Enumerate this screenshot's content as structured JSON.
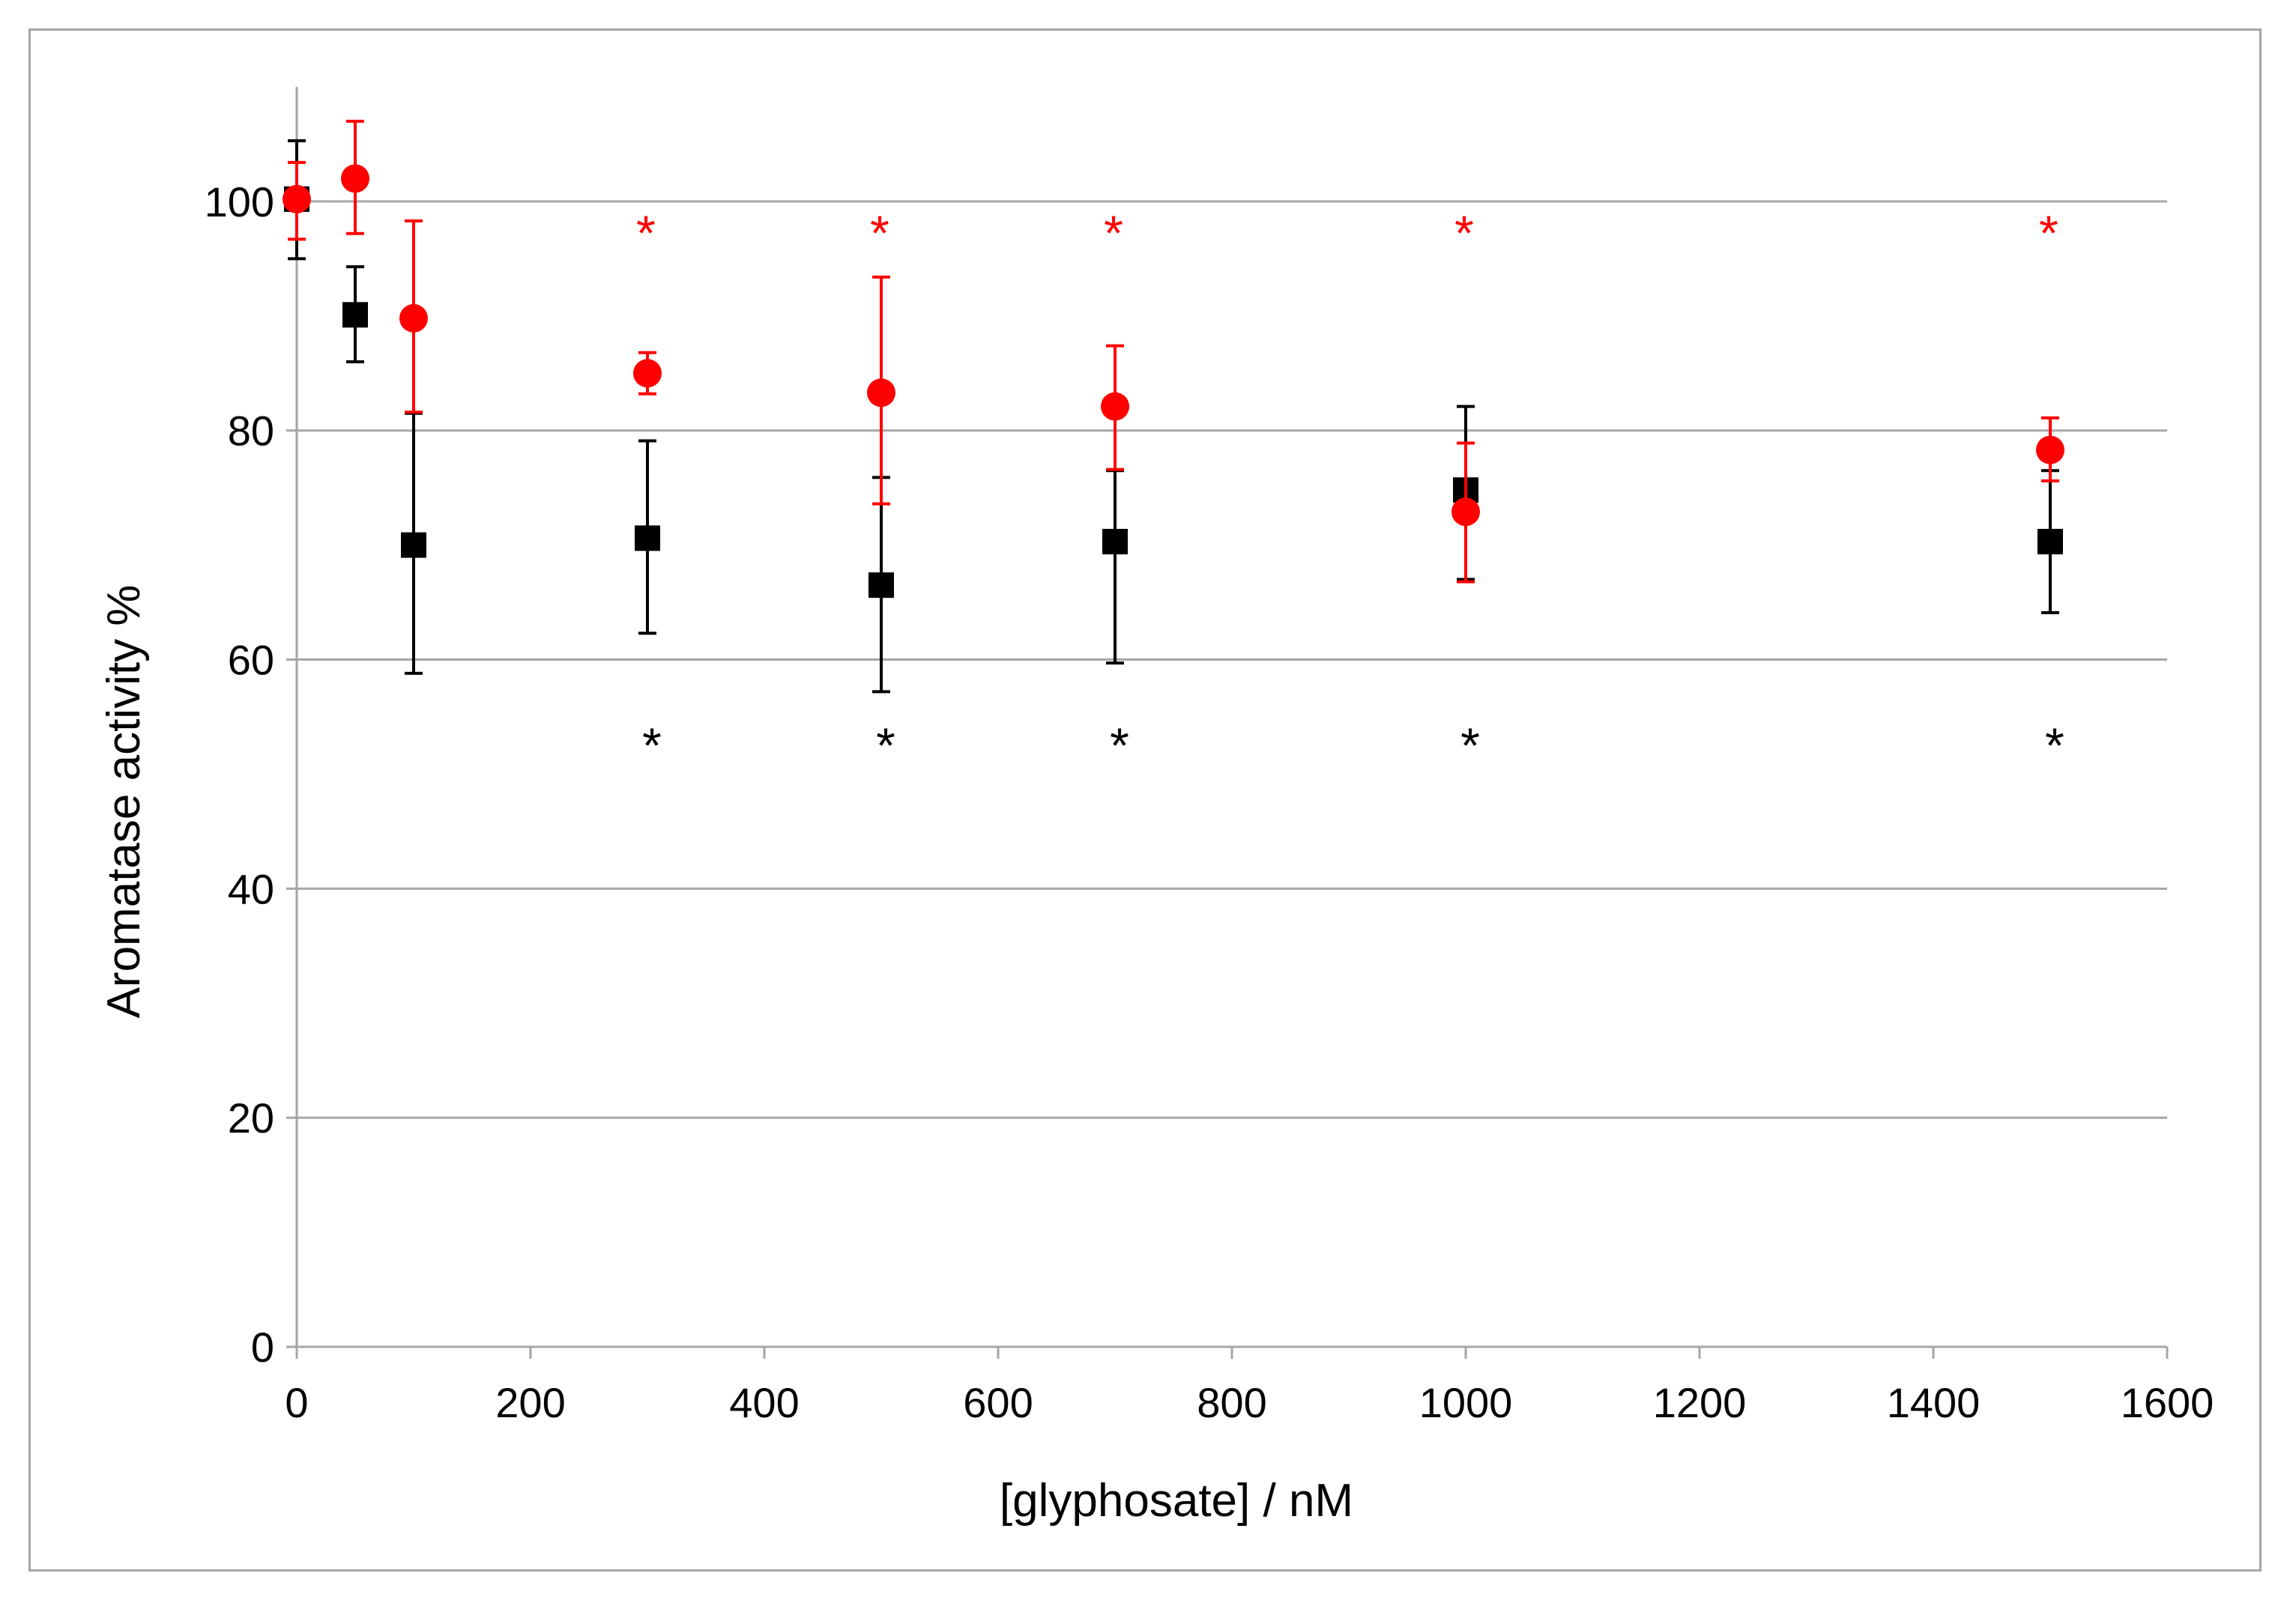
{
  "chart_data": {
    "type": "scatter",
    "title": "",
    "xlabel": "[glyphosate] / nM",
    "ylabel": "Aromatase activity %",
    "xlim": [
      0,
      1600
    ],
    "ylim": [
      0,
      110
    ],
    "xticks": [
      0,
      200,
      400,
      600,
      800,
      1000,
      1200,
      1400,
      1600
    ],
    "yticks": [
      0,
      20,
      40,
      60,
      80,
      100
    ],
    "xtick_labels": [
      "0",
      "200",
      "400",
      "600",
      "800",
      "1000",
      "1200",
      "1400",
      "1600"
    ],
    "ytick_labels": [
      "0",
      "20",
      "40",
      "60",
      "80",
      "100"
    ],
    "grid": "horizontal",
    "legend": "none",
    "series": [
      {
        "marker": "square",
        "color": "#000000",
        "points": [
          {
            "x": 0,
            "y": 100.2,
            "err_low": 95.0,
            "err_high": 105.3
          },
          {
            "x": 50,
            "y": 90.1,
            "err_low": 86.0,
            "err_high": 94.3
          },
          {
            "x": 100,
            "y": 70.0,
            "err_low": 58.8,
            "err_high": 81.5
          },
          {
            "x": 300,
            "y": 70.6,
            "err_low": 62.3,
            "err_high": 79.1
          },
          {
            "x": 500,
            "y": 66.5,
            "err_low": 57.2,
            "err_high": 75.9
          },
          {
            "x": 700,
            "y": 70.3,
            "err_low": 59.7,
            "err_high": 76.5
          },
          {
            "x": 1000,
            "y": 74.8,
            "err_low": 67.0,
            "err_high": 82.1
          },
          {
            "x": 1500,
            "y": 70.3,
            "err_low": 64.1,
            "err_high": 76.5
          }
        ],
        "significance": [
          {
            "x": 300,
            "label": "*"
          },
          {
            "x": 500,
            "label": "*"
          },
          {
            "x": 700,
            "label": "*"
          },
          {
            "x": 1000,
            "label": "*"
          },
          {
            "x": 1500,
            "label": "*"
          }
        ]
      },
      {
        "marker": "circle",
        "color": "#ff0000",
        "points": [
          {
            "x": 0,
            "y": 100.2,
            "err_low": 96.7,
            "err_high": 103.4
          },
          {
            "x": 50,
            "y": 102.0,
            "err_low": 97.2,
            "err_high": 107.0
          },
          {
            "x": 100,
            "y": 89.8,
            "err_low": 81.6,
            "err_high": 98.3
          },
          {
            "x": 300,
            "y": 85.0,
            "err_low": 83.2,
            "err_high": 86.8
          },
          {
            "x": 500,
            "y": 83.3,
            "err_low": 73.6,
            "err_high": 93.4
          },
          {
            "x": 700,
            "y": 82.1,
            "err_low": 76.6,
            "err_high": 87.4
          },
          {
            "x": 1000,
            "y": 72.9,
            "err_low": 66.8,
            "err_high": 78.9
          },
          {
            "x": 1500,
            "y": 78.3,
            "err_low": 75.6,
            "err_high": 81.1
          }
        ],
        "significance": [
          {
            "x": 300,
            "label": "*"
          },
          {
            "x": 500,
            "label": "*"
          },
          {
            "x": 700,
            "label": "*"
          },
          {
            "x": 1000,
            "label": "*"
          },
          {
            "x": 1500,
            "label": "*"
          }
        ]
      }
    ],
    "colors": {
      "gridline": "#a6a6a6",
      "axis": "#a6a6a6",
      "frame": "#a6a6a6",
      "black_series": "#000000",
      "red_series": "#ff0000"
    }
  }
}
